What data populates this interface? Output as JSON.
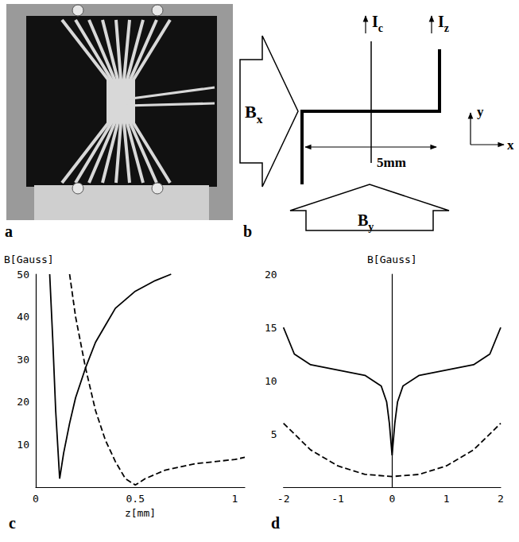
{
  "panels": {
    "a": {
      "letter": "a"
    },
    "b": {
      "letter": "b",
      "labels": {
        "field_x": {
          "base": "B",
          "sub": "x"
        },
        "field_y": {
          "base": "B",
          "sub": "y"
        },
        "current_c": {
          "base": "I",
          "sub": "c"
        },
        "current_z": {
          "base": "I",
          "sub": "z"
        },
        "spacing": "5mm",
        "axis_x": "x",
        "axis_y": "y"
      }
    }
  },
  "chart_data": [
    {
      "type": "line",
      "title": "c",
      "x_label": "z[mm]",
      "y_label": "B[Gauss]",
      "xlim": [
        0,
        1.05
      ],
      "xticks": [
        0,
        0.5,
        1
      ],
      "ylim": [
        0,
        50
      ],
      "yticks": [
        10,
        20,
        30,
        40,
        50
      ],
      "grid": false,
      "series": [
        {
          "color": "#000000",
          "line_style": "solid",
          "x": [
            0.07,
            0.085,
            0.1,
            0.12,
            0.14,
            0.17,
            0.2,
            0.25,
            0.3,
            0.35,
            0.4,
            0.5,
            0.6,
            0.68
          ],
          "values": [
            50,
            35,
            18,
            2,
            8,
            15,
            21,
            28,
            34,
            38,
            42,
            46,
            48.5,
            50
          ]
        },
        {
          "color": "#000000",
          "line_style": "dashed",
          "x": [
            0.17,
            0.2,
            0.25,
            0.3,
            0.35,
            0.4,
            0.45,
            0.5,
            0.55,
            0.65,
            0.8,
            1.0,
            1.05
          ],
          "values": [
            50,
            40,
            28,
            18,
            11,
            6,
            2,
            0.5,
            2,
            4,
            5.5,
            6.5,
            7
          ]
        }
      ]
    },
    {
      "type": "line",
      "title": "d",
      "y_label": "B[Gauss]",
      "xlim": [
        -2,
        2
      ],
      "xticks": [
        -2,
        -1,
        0,
        1,
        2
      ],
      "ylim": [
        0,
        20
      ],
      "yticks": [
        5,
        10,
        15,
        20
      ],
      "grid": false,
      "series": [
        {
          "color": "#000000",
          "line_style": "solid",
          "x": [
            -2,
            -1.8,
            -1.5,
            -1,
            -0.5,
            -0.2,
            -0.1,
            -0.05,
            0,
            0.05,
            0.1,
            0.2,
            0.5,
            1,
            1.5,
            1.8,
            2
          ],
          "values": [
            15,
            12.5,
            11.5,
            11,
            10.5,
            9.5,
            8,
            6,
            3,
            6,
            8,
            9.5,
            10.5,
            11,
            11.5,
            12.5,
            15
          ]
        },
        {
          "color": "#000000",
          "line_style": "dashed",
          "x": [
            -2,
            -1.5,
            -1,
            -0.5,
            0,
            0.5,
            1,
            1.5,
            2
          ],
          "values": [
            6,
            3.5,
            2,
            1.2,
            1,
            1.2,
            2,
            3.5,
            6
          ]
        }
      ]
    }
  ]
}
